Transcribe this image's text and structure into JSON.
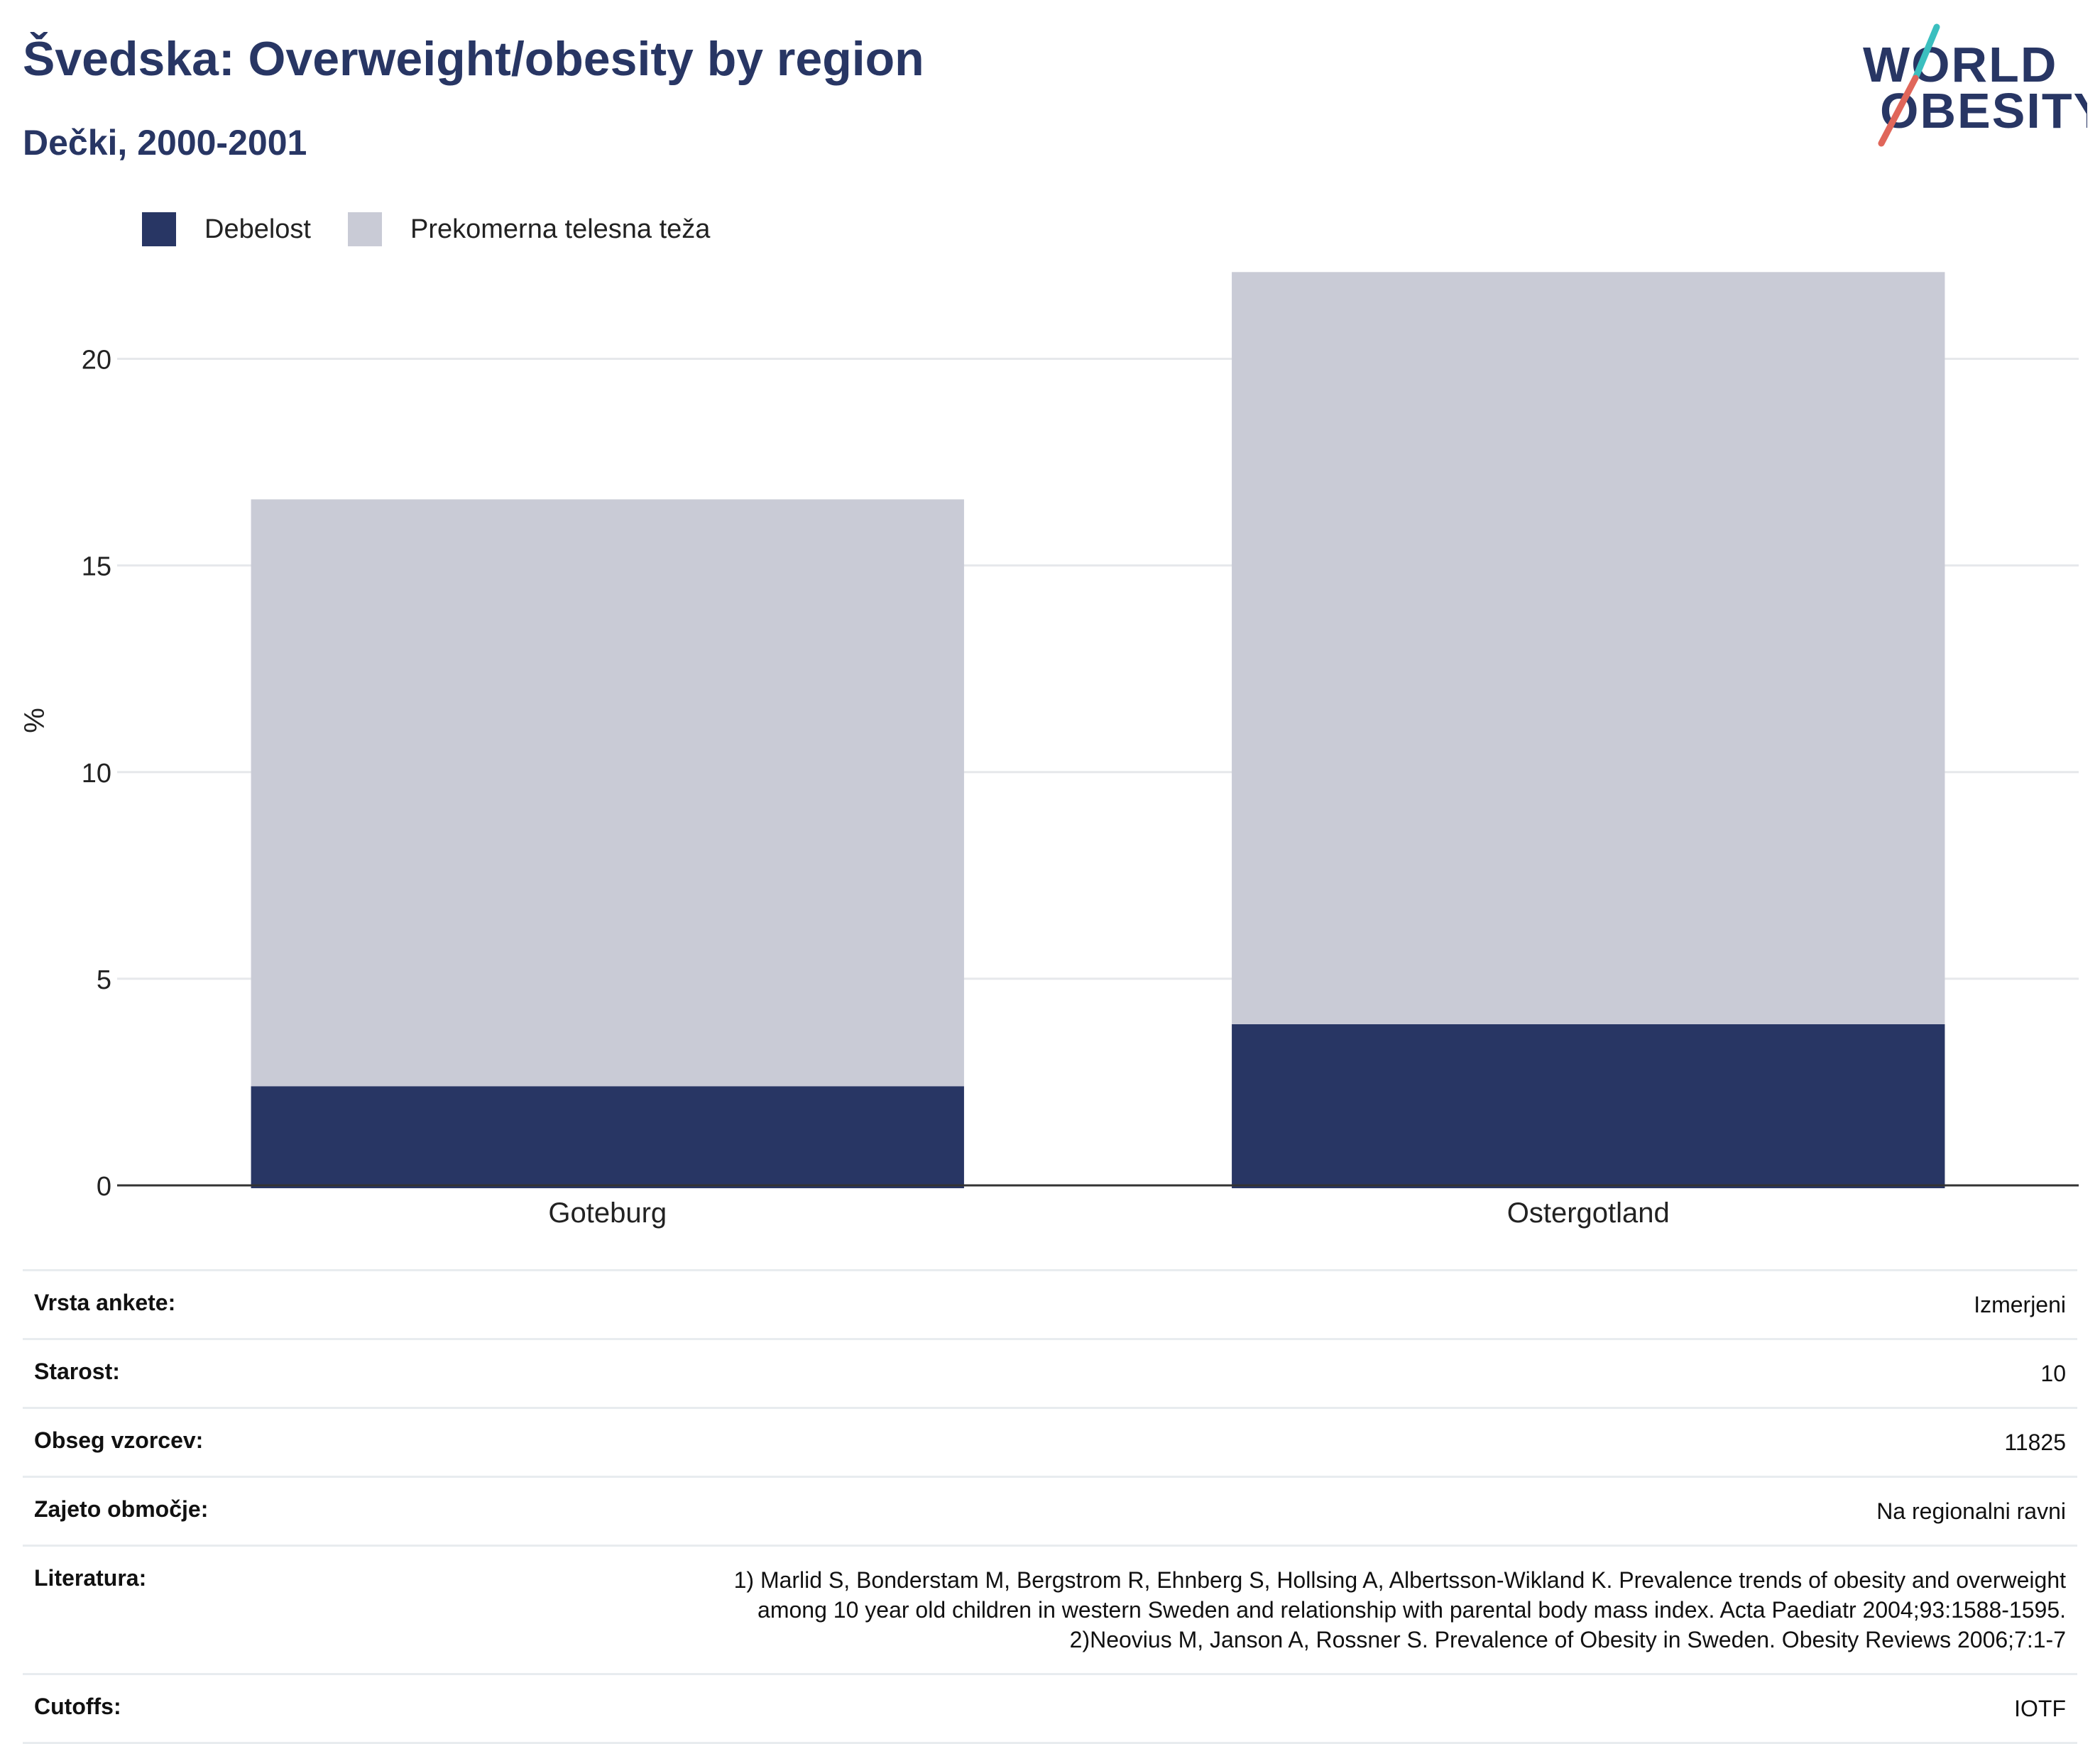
{
  "header": {
    "title": "Švedska: Overweight/obesity by region",
    "subtitle": "Dečki, 2000-2001"
  },
  "logo": {
    "line1": "WORLD",
    "line2": "OBESITY"
  },
  "colors": {
    "obesity": "#283664",
    "overweight": "#c9cbd6",
    "grid": "#e6e8eb",
    "axis": "#333333",
    "logo_teal": "#3bbfbf",
    "logo_coral": "#e0665a"
  },
  "chart_data": {
    "type": "bar",
    "stacked": true,
    "categories": [
      "Goteburg",
      "Ostergotland"
    ],
    "series": [
      {
        "name": "Debelost",
        "values": [
          2.4,
          3.9
        ]
      },
      {
        "name": "Prekomerna telesna teža",
        "values": [
          14.2,
          18.2
        ]
      }
    ],
    "ylabel": "%",
    "ylim": [
      0,
      22.5
    ],
    "yticks": [
      0,
      5,
      10,
      15,
      20
    ],
    "grid": true,
    "legend_position": "top-left"
  },
  "info": {
    "rows": [
      {
        "key": "Vrsta ankete:",
        "value": "Izmerjeni"
      },
      {
        "key": "Starost:",
        "value": "10"
      },
      {
        "key": "Obseg vzorcev:",
        "value": "11825"
      },
      {
        "key": "Zajeto območje:",
        "value": "Na regionalni ravni"
      },
      {
        "key": "Literatura:",
        "value_lines": [
          "1) Marlid S, Bonderstam M, Bergstrom R, Ehnberg S, Hollsing A, Albertsson-Wikland K. Prevalence trends of obesity and overweight",
          "among 10 year old children in western Sweden and relationship with parental body mass index. Acta Paediatr 2004;93:1588-1595.",
          "2)Neovius M, Janson A, Rossner S. Prevalence of Obesity in Sweden. Obesity Reviews 2006;7:1-7"
        ]
      },
      {
        "key": "Cutoffs:",
        "value": "IOTF"
      }
    ]
  }
}
